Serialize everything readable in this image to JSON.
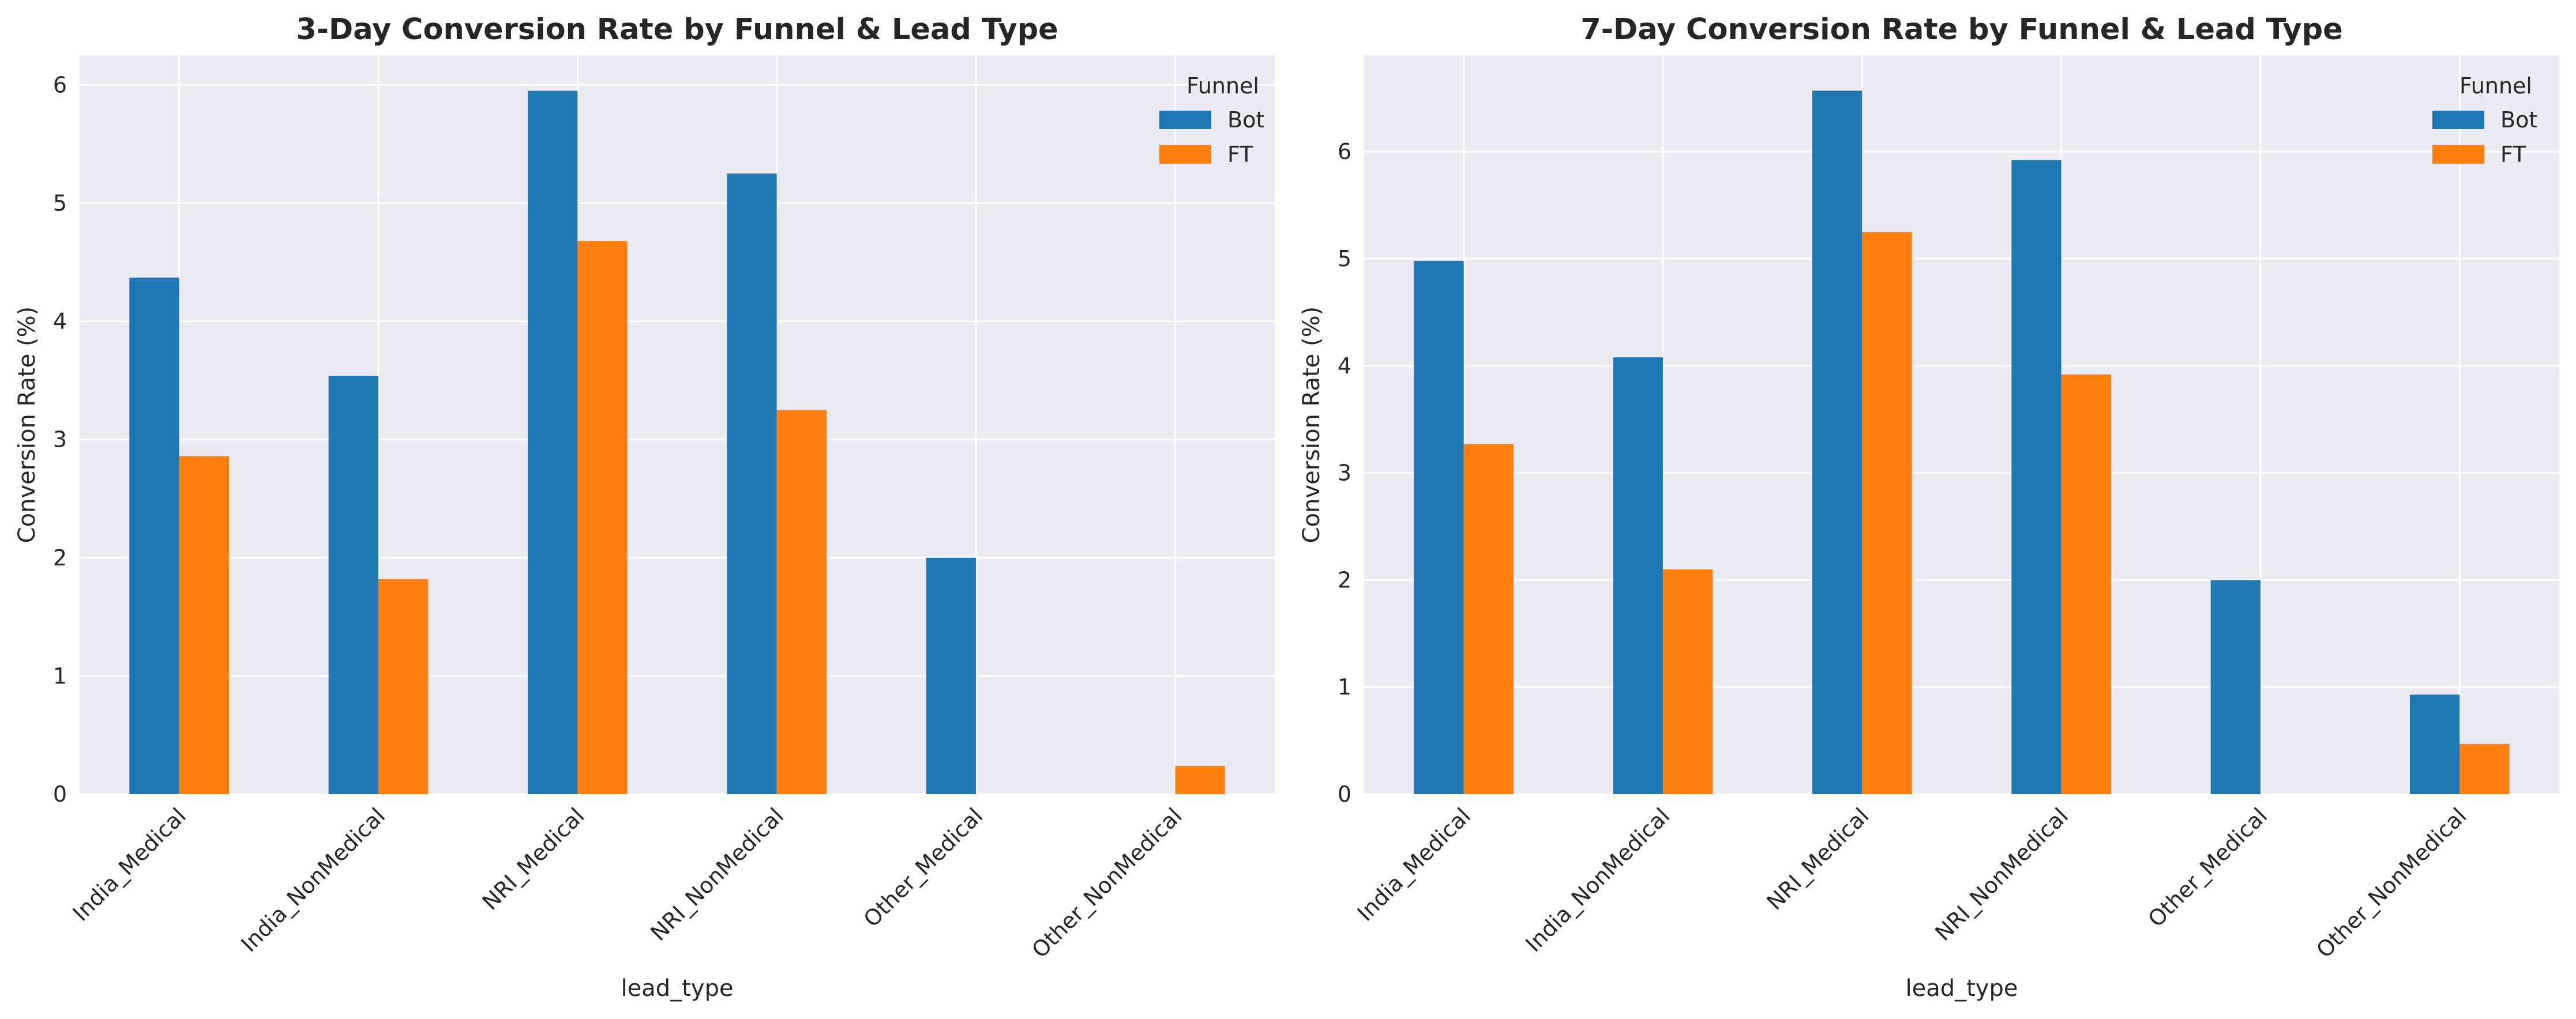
{
  "chart_data": [
    {
      "type": "bar",
      "title": "3-Day Conversion Rate by Funnel & Lead Type",
      "xlabel": "lead_type",
      "ylabel": "Conversion Rate (%)",
      "categories": [
        "India_Medical",
        "India_NonMedical",
        "NRI_Medical",
        "NRI_NonMedical",
        "Other_Medical",
        "Other_NonMedical"
      ],
      "series": [
        {
          "name": "Bot",
          "color": "#1f77b4",
          "values": [
            4.37,
            3.54,
            5.95,
            5.25,
            2.0,
            0
          ]
        },
        {
          "name": "FT",
          "color": "#ff7f0e",
          "values": [
            2.86,
            1.82,
            4.68,
            3.25,
            0,
            0.24
          ]
        }
      ],
      "ylim": [
        0,
        6.25
      ],
      "yticks": [
        0,
        1,
        2,
        3,
        4,
        5,
        6
      ],
      "legend": {
        "title": "Funnel",
        "position": "top-right"
      },
      "grid": true
    },
    {
      "type": "bar",
      "title": "7-Day Conversion Rate by Funnel & Lead Type",
      "xlabel": "lead_type",
      "ylabel": "Conversion Rate (%)",
      "categories": [
        "India_Medical",
        "India_NonMedical",
        "NRI_Medical",
        "NRI_NonMedical",
        "Other_Medical",
        "Other_NonMedical"
      ],
      "series": [
        {
          "name": "Bot",
          "color": "#1f77b4",
          "values": [
            4.98,
            4.08,
            6.57,
            5.92,
            2.0,
            0.93
          ]
        },
        {
          "name": "FT",
          "color": "#ff7f0e",
          "values": [
            3.27,
            2.1,
            5.25,
            3.92,
            0,
            0.47
          ]
        }
      ],
      "ylim": [
        0,
        6.9
      ],
      "yticks": [
        0,
        1,
        2,
        3,
        4,
        5,
        6
      ],
      "legend": {
        "title": "Funnel",
        "position": "top-right"
      },
      "grid": true
    }
  ]
}
